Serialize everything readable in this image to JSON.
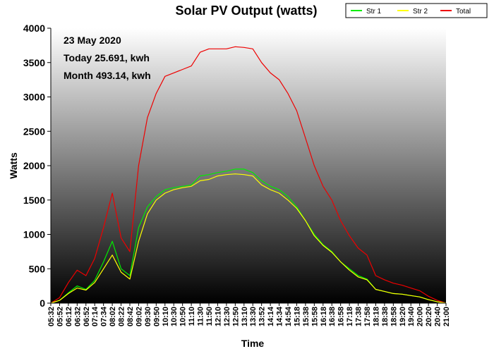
{
  "chart_data": {
    "type": "line",
    "title": "Solar PV Output (watts)",
    "xlabel": "Time",
    "ylabel": "Watts",
    "ylim": [
      0,
      4000
    ],
    "yticks": [
      0,
      500,
      1000,
      1500,
      2000,
      2500,
      3000,
      3500,
      4000
    ],
    "grid": false,
    "legend_position": "top-right",
    "background": "vertical gradient, white at top to black at bottom",
    "annotations": [
      "23 May 2020",
      "Today 25.691, kwh",
      "Month 493.14, kwh"
    ],
    "x": [
      "05:32",
      "05:52",
      "06:12",
      "06:32",
      "06:52",
      "07:14",
      "07:34",
      "08:02",
      "08:22",
      "08:42",
      "09:02",
      "09:30",
      "09:50",
      "10:10",
      "10:30",
      "10:50",
      "11:10",
      "11:30",
      "11:50",
      "12:10",
      "12:30",
      "12:50",
      "13:10",
      "13:30",
      "13:52",
      "14:14",
      "14:34",
      "14:54",
      "15:18",
      "15:38",
      "15:58",
      "16:18",
      "16:38",
      "16:58",
      "17:18",
      "17:38",
      "17:58",
      "18:18",
      "18:38",
      "18:58",
      "19:20",
      "19:40",
      "20:00",
      "20:20",
      "20:40",
      "21:00"
    ],
    "series": [
      {
        "name": "Str 1",
        "color": "#00ee00",
        "values": [
          0,
          40,
          150,
          250,
          200,
          330,
          600,
          900,
          500,
          400,
          1100,
          1400,
          1550,
          1650,
          1680,
          1700,
          1720,
          1850,
          1870,
          1900,
          1920,
          1950,
          1950,
          1900,
          1780,
          1700,
          1650,
          1550,
          1400,
          1200,
          1000,
          850,
          750,
          600,
          500,
          400,
          350,
          200,
          170,
          140,
          130,
          110,
          90,
          50,
          20,
          0
        ]
      },
      {
        "name": "Str 2",
        "color": "#ffff00",
        "values": [
          0,
          40,
          140,
          220,
          190,
          300,
          500,
          700,
          450,
          350,
          900,
          1300,
          1500,
          1600,
          1650,
          1680,
          1700,
          1780,
          1800,
          1850,
          1870,
          1880,
          1870,
          1850,
          1720,
          1650,
          1600,
          1500,
          1380,
          1200,
          980,
          840,
          740,
          600,
          480,
          380,
          340,
          200,
          170,
          140,
          130,
          110,
          90,
          50,
          20,
          0
        ]
      },
      {
        "name": "Total",
        "color": "#ee0000",
        "values": [
          0,
          80,
          300,
          480,
          400,
          650,
          1100,
          1600,
          950,
          750,
          2000,
          2700,
          3050,
          3300,
          3350,
          3400,
          3450,
          3650,
          3700,
          3700,
          3700,
          3730,
          3720,
          3700,
          3500,
          3350,
          3250,
          3050,
          2800,
          2400,
          2000,
          1700,
          1500,
          1200,
          980,
          800,
          700,
          400,
          340,
          290,
          260,
          220,
          180,
          100,
          40,
          0
        ]
      }
    ]
  }
}
